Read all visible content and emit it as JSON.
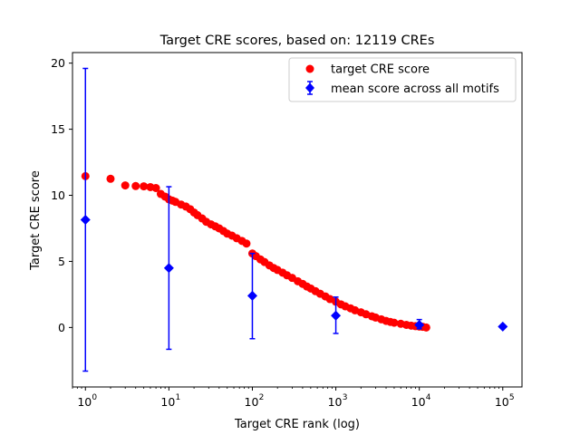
{
  "chart_data": {
    "type": "scatter",
    "title": "Target CRE scores, based on: 12119 CREs",
    "xlabel": "Target CRE rank (log)",
    "ylabel": "Target CRE score",
    "x_scale": "log",
    "xlim": [
      0.7,
      170000
    ],
    "ylim": [
      -4.5,
      20.8
    ],
    "grid": false,
    "legend_position": "top-right",
    "x_ticks": [
      {
        "value": 1,
        "base": "10",
        "exp": "0"
      },
      {
        "value": 10,
        "base": "10",
        "exp": "1"
      },
      {
        "value": 100,
        "base": "10",
        "exp": "2"
      },
      {
        "value": 1000,
        "base": "10",
        "exp": "3"
      },
      {
        "value": 10000,
        "base": "10",
        "exp": "4"
      },
      {
        "value": 100000,
        "base": "10",
        "exp": "5"
      }
    ],
    "y_ticks": [
      {
        "value": 0,
        "label": "0"
      },
      {
        "value": 5,
        "label": "5"
      },
      {
        "value": 10,
        "label": "10"
      },
      {
        "value": 15,
        "label": "15"
      },
      {
        "value": 20,
        "label": "20"
      }
    ],
    "series": [
      {
        "name": "target CRE score",
        "kind": "scatter",
        "color": "#ff0000",
        "marker": "circle",
        "points": [
          [
            1,
            11.45
          ],
          [
            2,
            11.25
          ],
          [
            3,
            10.75
          ],
          [
            4,
            10.7
          ],
          [
            5,
            10.68
          ],
          [
            6,
            10.62
          ],
          [
            7,
            10.55
          ],
          [
            8,
            10.1
          ],
          [
            9,
            9.9
          ],
          [
            10,
            9.7
          ],
          [
            11,
            9.6
          ],
          [
            12,
            9.5
          ],
          [
            14,
            9.3
          ],
          [
            16,
            9.15
          ],
          [
            18,
            8.95
          ],
          [
            20,
            8.7
          ],
          [
            22,
            8.5
          ],
          [
            25,
            8.25
          ],
          [
            28,
            8.0
          ],
          [
            32,
            7.8
          ],
          [
            36,
            7.65
          ],
          [
            40,
            7.5
          ],
          [
            45,
            7.3
          ],
          [
            50,
            7.1
          ],
          [
            57,
            6.95
          ],
          [
            65,
            6.75
          ],
          [
            75,
            6.55
          ],
          [
            85,
            6.35
          ],
          [
            100,
            5.6
          ],
          [
            110,
            5.4
          ],
          [
            125,
            5.15
          ],
          [
            140,
            4.95
          ],
          [
            160,
            4.7
          ],
          [
            180,
            4.5
          ],
          [
            200,
            4.35
          ],
          [
            230,
            4.15
          ],
          [
            260,
            3.95
          ],
          [
            300,
            3.75
          ],
          [
            350,
            3.5
          ],
          [
            400,
            3.3
          ],
          [
            450,
            3.1
          ],
          [
            500,
            2.95
          ],
          [
            570,
            2.75
          ],
          [
            650,
            2.55
          ],
          [
            750,
            2.35
          ],
          [
            850,
            2.15
          ],
          [
            1000,
            1.95
          ],
          [
            1150,
            1.75
          ],
          [
            1300,
            1.6
          ],
          [
            1500,
            1.45
          ],
          [
            1700,
            1.3
          ],
          [
            2000,
            1.15
          ],
          [
            2300,
            1.0
          ],
          [
            2700,
            0.85
          ],
          [
            3000,
            0.75
          ],
          [
            3500,
            0.62
          ],
          [
            4000,
            0.5
          ],
          [
            4500,
            0.42
          ],
          [
            5000,
            0.36
          ],
          [
            6000,
            0.28
          ],
          [
            7000,
            0.2
          ],
          [
            8000,
            0.14
          ],
          [
            9000,
            0.1
          ],
          [
            10000,
            0.07
          ],
          [
            11000,
            0.05
          ],
          [
            12119,
            0.0
          ]
        ]
      },
      {
        "name": "mean score across all motifs",
        "kind": "errorbar",
        "color": "#0000ff",
        "marker": "diamond",
        "points": [
          {
            "x": 1,
            "y": 8.15,
            "low": -3.3,
            "high": 19.6
          },
          {
            "x": 10,
            "y": 4.5,
            "low": -1.65,
            "high": 10.65
          },
          {
            "x": 100,
            "y": 2.4,
            "low": -0.85,
            "high": 5.6
          },
          {
            "x": 1000,
            "y": 0.9,
            "low": -0.45,
            "high": 2.3
          },
          {
            "x": 10000,
            "y": 0.2,
            "low": -0.1,
            "high": 0.6
          },
          {
            "x": 100000,
            "y": 0.07,
            "low": 0.07,
            "high": 0.07
          }
        ]
      }
    ]
  }
}
